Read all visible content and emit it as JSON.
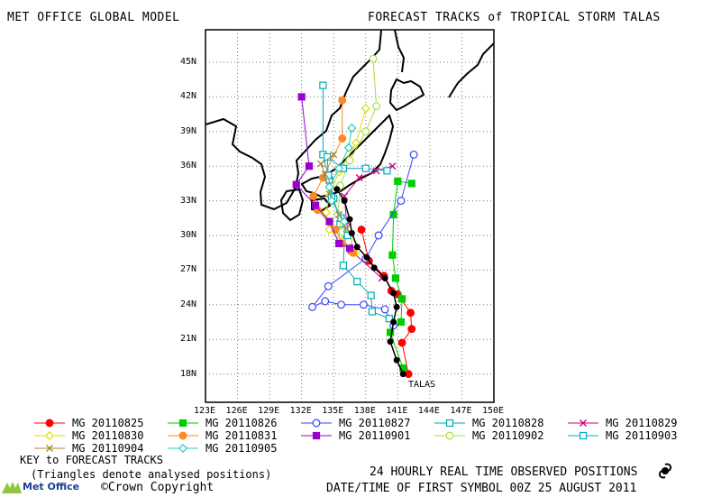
{
  "header": {
    "left": "MET OFFICE GLOBAL MODEL",
    "right": "FORECAST TRACKS of TROPICAL STORM TALAS"
  },
  "map": {
    "lat_ticks": [
      "45N",
      "42N",
      "39N",
      "36N",
      "33N",
      "30N",
      "27N",
      "24N",
      "21N",
      "18N"
    ],
    "lon_ticks": [
      "123E",
      "126E",
      "129E",
      "132E",
      "135E",
      "138E",
      "141E",
      "144E",
      "147E",
      "150E"
    ],
    "storm_label": "TALAS",
    "observed_track": [
      [
        141.5,
        18.0
      ],
      [
        140.9,
        19.2
      ],
      [
        140.3,
        20.8
      ],
      [
        140.6,
        22.5
      ],
      [
        140.9,
        23.8
      ],
      [
        140.6,
        25.0
      ],
      [
        139.8,
        26.3
      ],
      [
        138.8,
        27.2
      ],
      [
        138.1,
        28.1
      ],
      [
        137.2,
        29.0
      ],
      [
        136.7,
        30.2
      ],
      [
        136.5,
        31.4
      ],
      [
        136.0,
        33.0
      ],
      [
        135.3,
        34.0
      ]
    ]
  },
  "legend": {
    "items": [
      {
        "label": "MG 20110825",
        "color": "#ff0000",
        "marker": "circle-filled"
      },
      {
        "label": "MG 20110826",
        "color": "#00cc00",
        "marker": "square-filled"
      },
      {
        "label": "MG 20110827",
        "color": "#3344ff",
        "marker": "circle-open"
      },
      {
        "label": "MG 20110828",
        "color": "#00aaaa",
        "marker": "square-open"
      },
      {
        "label": "MG 20110829",
        "color": "#cc0077",
        "marker": "x"
      },
      {
        "label": "MG 20110830",
        "color": "#dddd00",
        "marker": "diamond-open"
      },
      {
        "label": "MG 20110831",
        "color": "#ff8822",
        "marker": "circle-filled"
      },
      {
        "label": "MG 20110901",
        "color": "#9900cc",
        "marker": "square-filled"
      },
      {
        "label": "MG 20110902",
        "color": "#aadd44",
        "marker": "circle-open"
      },
      {
        "label": "MG 20110903",
        "color": "#00aacc",
        "marker": "square-open"
      },
      {
        "label": "MG 20110904",
        "color": "#aa8833",
        "marker": "x"
      },
      {
        "label": "MG 20110905",
        "color": "#22ccbb",
        "marker": "diamond-open"
      }
    ]
  },
  "footer": {
    "key_title": "KEY to FORECAST TRACKS",
    "key_note": "(Triangles denote analysed positions)",
    "observed_note": "24 HOURLY REAL TIME OBSERVED POSITIONS",
    "date_note": "DATE/TIME OF FIRST SYMBOL 00Z 25 AUGUST 2011",
    "logo_text": "Met Office",
    "copyright": "©Crown Copyright"
  },
  "tracks": [
    {
      "color": "#ff0000",
      "marker": "circle-filled",
      "points": [
        [
          142.0,
          18.0
        ],
        [
          141.4,
          20.7
        ],
        [
          142.3,
          21.9
        ],
        [
          142.2,
          23.3
        ],
        [
          141.0,
          24.9
        ],
        [
          140.4,
          25.2
        ],
        [
          139.7,
          26.5
        ],
        [
          138.3,
          27.8
        ],
        [
          137.6,
          30.5
        ]
      ]
    },
    {
      "color": "#00cc00",
      "marker": "square-filled",
      "points": [
        [
          141.5,
          18.5
        ],
        [
          140.3,
          21.6
        ],
        [
          141.3,
          22.5
        ],
        [
          141.4,
          24.5
        ],
        [
          140.8,
          26.3
        ],
        [
          140.5,
          28.3
        ],
        [
          140.6,
          31.8
        ],
        [
          141.0,
          34.7
        ],
        [
          142.3,
          34.5
        ]
      ]
    },
    {
      "color": "#3344ff",
      "marker": "circle-open",
      "points": [
        [
          140.6,
          22.2
        ],
        [
          139.8,
          23.6
        ],
        [
          137.8,
          24.0
        ],
        [
          135.7,
          24.0
        ],
        [
          134.2,
          24.3
        ],
        [
          133.0,
          23.8
        ],
        [
          134.5,
          25.6
        ],
        [
          138.0,
          28.0
        ],
        [
          139.2,
          30.0
        ],
        [
          141.3,
          33.0
        ],
        [
          142.5,
          37.0
        ]
      ]
    },
    {
      "color": "#00aaaa",
      "marker": "square-open",
      "points": [
        [
          140.2,
          22.8
        ],
        [
          138.6,
          23.4
        ],
        [
          138.5,
          24.8
        ],
        [
          137.2,
          26.0
        ],
        [
          135.9,
          27.4
        ],
        [
          136.0,
          29.5
        ],
        [
          135.6,
          31.0
        ],
        [
          135.0,
          33.2
        ],
        [
          134.6,
          34.8
        ],
        [
          134.0,
          37.0
        ],
        [
          134.0,
          43.0
        ]
      ]
    },
    {
      "color": "#cc0077",
      "marker": "x",
      "points": [
        [
          139.5,
          26.3
        ],
        [
          136.6,
          28.7
        ],
        [
          136.2,
          31.2
        ],
        [
          136.0,
          33.4
        ],
        [
          137.4,
          35.0
        ],
        [
          139.0,
          35.6
        ],
        [
          140.5,
          36.0
        ]
      ]
    },
    {
      "color": "#dddd00",
      "marker": "diamond-open",
      "points": [
        [
          137.0,
          28.5
        ],
        [
          135.8,
          29.5
        ],
        [
          134.6,
          30.5
        ],
        [
          134.3,
          32.0
        ],
        [
          134.6,
          33.5
        ],
        [
          135.5,
          35.5
        ],
        [
          137.1,
          38.0
        ],
        [
          138.0,
          41.0
        ]
      ]
    },
    {
      "color": "#ff8822",
      "marker": "circle-filled",
      "points": [
        [
          136.8,
          28.5
        ],
        [
          135.8,
          29.3
        ],
        [
          135.2,
          30.5
        ],
        [
          133.5,
          32.2
        ],
        [
          133.1,
          33.4
        ],
        [
          134.0,
          35.0
        ],
        [
          135.8,
          38.4
        ],
        [
          135.8,
          41.7
        ]
      ]
    },
    {
      "color": "#9900cc",
      "marker": "square-filled",
      "points": [
        [
          136.5,
          28.9
        ],
        [
          135.5,
          29.3
        ],
        [
          134.6,
          31.2
        ],
        [
          133.3,
          32.6
        ],
        [
          131.5,
          34.4
        ],
        [
          132.7,
          36.0
        ],
        [
          132.0,
          42.0
        ]
      ]
    },
    {
      "color": "#aadd44",
      "marker": "circle-open",
      "points": [
        [
          136.4,
          29.5
        ],
        [
          135.8,
          30.3
        ],
        [
          135.4,
          31.8
        ],
        [
          135.6,
          34.3
        ],
        [
          136.5,
          36.5
        ],
        [
          138.0,
          39.0
        ],
        [
          139.0,
          41.2
        ],
        [
          138.7,
          45.3
        ]
      ]
    },
    {
      "color": "#00aacc",
      "marker": "square-open",
      "points": [
        [
          136.3,
          30.0
        ],
        [
          135.7,
          31.5
        ],
        [
          134.8,
          33.3
        ],
        [
          134.5,
          35.2
        ],
        [
          134.4,
          36.8
        ],
        [
          135.9,
          35.8
        ],
        [
          138.0,
          35.8
        ],
        [
          140.0,
          35.6
        ]
      ]
    },
    {
      "color": "#aa8833",
      "marker": "x",
      "points": [
        [
          136.2,
          30.6
        ],
        [
          135.5,
          31.8
        ],
        [
          134.6,
          33.6
        ],
        [
          134.2,
          35.3
        ],
        [
          133.8,
          36.2
        ],
        [
          135.0,
          37.0
        ]
      ]
    },
    {
      "color": "#22ccbb",
      "marker": "diamond-open",
      "points": [
        [
          136.0,
          31.2
        ],
        [
          134.8,
          33.0
        ],
        [
          134.6,
          34.2
        ],
        [
          135.5,
          35.8
        ],
        [
          136.4,
          37.6
        ],
        [
          136.7,
          39.3
        ]
      ]
    }
  ]
}
